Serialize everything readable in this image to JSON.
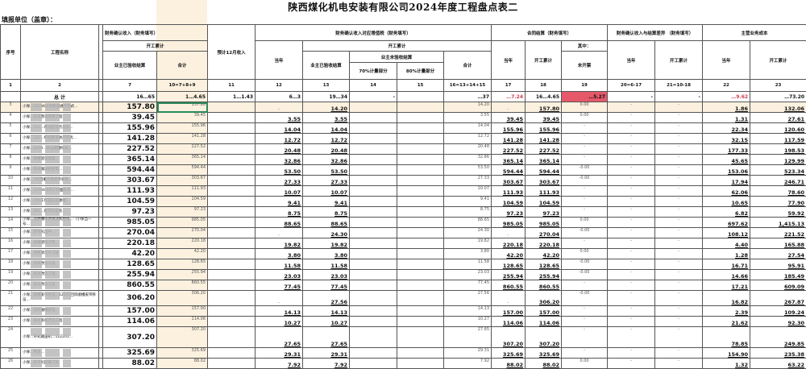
{
  "title": "陕西煤化机电安装有限公司2024年度工程盘点表二",
  "unit_label": "填报单位（盖章）：",
  "headers": {
    "seq": "序号",
    "name": "工程名称",
    "fin_income": "财务确认收入（财务填写）",
    "cum": "开工累计",
    "owner_accepted": "业主已验收结算",
    "total": "合计",
    "est_dec": "预计12月收入",
    "vat": "财务确认收入对应增值税（财务填写）",
    "cur_year": "当年",
    "owner_unaccepted": "业主未验收结算",
    "p70": "70%计量部分",
    "p80": "80%计量部分",
    "contract": "合同结算（财务填写）",
    "of_which": "其中：",
    "uninvoiced": "未开票",
    "diff": "财务确认收入与结算差异 （财务填写）",
    "cost": "主营业务成本"
  },
  "index_row": [
    "1",
    "2",
    "7",
    "10=7+8+9",
    "11",
    "12",
    "13",
    "14",
    "15",
    "16=13+14+15",
    "17",
    "18",
    "19",
    "20=6-17",
    "21=10-18",
    "22",
    "23"
  ],
  "total_row": {
    "label": "总  计",
    "values": [
      "16…65",
      "1…4.65",
      "1…1.43",
      "6…3",
      "19…34",
      "-",
      "",
      "…37",
      "…7.24",
      "16…4.65",
      "…5.27",
      "-",
      "-",
      "…9.62",
      "…73.20"
    ]
  },
  "colors": {
    "cream": "#fcf1df",
    "alert_red": "#e5596a",
    "selection": "#2b8a5a"
  },
  "rows": [
    {
      "seq": "3",
      "name": "小保…32204综掘巷道进尺带式…",
      "v": [
        "157.80",
        "157.80",
        "",
        "-",
        "14.20",
        "",
        "",
        "14.20",
        "-",
        "157.80",
        "0.00",
        "-",
        "-",
        "1.86",
        "132.06"
      ]
    },
    {
      "seq": "4",
      "name": "小保…综采巷道更换工程",
      "v": [
        "39.45",
        "39.45",
        "",
        "3.55",
        "3.55",
        "",
        "",
        "3.55",
        "39.45",
        "39.45",
        "0.00",
        "-",
        "-",
        "1.31",
        "27.61"
      ]
    },
    {
      "seq": "5",
      "name": "小保…122…巷道配电点及照…",
      "v": [
        "155.96",
        "155.96",
        "",
        "14.04",
        "14.04",
        "",
        "",
        "14.04",
        "155.96",
        "155.96",
        "-",
        "-",
        "-",
        "22.34",
        "120.60"
      ]
    },
    {
      "seq": "6",
      "name": "小保…122…综掘巷道进尺带式…",
      "v": [
        "141.28",
        "141.28",
        "",
        "12.72",
        "12.72",
        "",
        "",
        "12.72",
        "141.28",
        "141.28",
        "-",
        "-",
        "-",
        "32.15",
        "117.59"
      ]
    },
    {
      "seq": "7",
      "name": "小保…2200…采运顺槽综采…",
      "v": [
        "227.52",
        "227.52",
        "",
        "20.48",
        "20.48",
        "",
        "",
        "20.48",
        "227.52",
        "227.52",
        "-",
        "-",
        "-",
        "177.33",
        "198.53"
      ]
    },
    {
      "seq": "8",
      "name": "小保…顺槽配采电缆…",
      "v": [
        "365.14",
        "365.14",
        "",
        "32.86",
        "32.86",
        "",
        "",
        "32.86",
        "365.14",
        "365.14",
        "-",
        "-",
        "-",
        "45.65",
        "129.99"
      ]
    },
    {
      "seq": "9",
      "name": "小保…带式输送机配电…",
      "v": [
        "594.44",
        "594.44",
        "",
        "53.50",
        "53.50",
        "",
        "",
        "53.50",
        "594.44",
        "594.44",
        "-0.00",
        "-",
        "-",
        "153.06",
        "523.34"
      ]
    },
    {
      "seq": "10",
      "name": "小保…2综回撤大巷皮带更换…",
      "v": [
        "303.67",
        "303.67",
        "",
        "27.33",
        "27.33",
        "",
        "",
        "27.33",
        "303.67",
        "303.67",
        "-0.00",
        "-",
        "-",
        "17.94",
        "246.71"
      ]
    },
    {
      "seq": "11",
      "name": "小保…22204进风工作面胶带…",
      "v": [
        "111.93",
        "111.93",
        "",
        "10.07",
        "10.07",
        "",
        "",
        "10.07",
        "111.93",
        "111.93",
        "-",
        "-",
        "-",
        "62.06",
        "78.60"
      ]
    },
    {
      "seq": "12",
      "name": "小保…204工作面胶运顺槽…",
      "v": [
        "104.59",
        "104.59",
        "",
        "9.41",
        "9.41",
        "",
        "",
        "9.41",
        "104.59",
        "104.59",
        "-",
        "-",
        "-",
        "10.65",
        "77.90"
      ]
    },
    {
      "seq": "13",
      "name": "小保…201…胶带机安装…",
      "v": [
        "97.23",
        "97.23",
        "",
        "8.75",
        "8.75",
        "",
        "",
        "8.75",
        "97.23",
        "97.23",
        "-",
        "-",
        "-",
        "6.82",
        "59.92"
      ]
    },
    {
      "seq": "14",
      "name": "小保…运顺槽带式输送机配电…（小保当一号…",
      "v": [
        "985.05",
        "985.05",
        "",
        "88.65",
        "88.65",
        "",
        "",
        "88.65",
        "985.05",
        "985.05",
        "0.00",
        "-",
        "-",
        "697.62",
        "1,415.13"
      ]
    },
    {
      "seq": "15",
      "name": "小保…胶带机运中…",
      "v": [
        "270.04",
        "270.04",
        "",
        "-",
        "24.30",
        "",
        "",
        "24.30",
        "-",
        "270.04",
        "-0.00",
        "-",
        "-",
        "108.12",
        "221.52"
      ]
    },
    {
      "seq": "16",
      "name": "小保…顺槽配电点及…",
      "v": [
        "220.18",
        "220.18",
        "",
        "19.82",
        "19.82",
        "",
        "",
        "19.82",
        "220.18",
        "220.18",
        "-",
        "-",
        "-",
        "4.40",
        "165.88"
      ]
    },
    {
      "seq": "17",
      "name": "小保…更换消音片工程",
      "v": [
        "42.20",
        "42.20",
        "",
        "3.80",
        "3.80",
        "",
        "",
        "3.80",
        "42.20",
        "42.20",
        "0.00",
        "-",
        "-",
        "1.28",
        "27.54"
      ]
    },
    {
      "seq": "18",
      "name": "小保…系统改造工程",
      "v": [
        "128.65",
        "128.65",
        "",
        "11.58",
        "11.58",
        "",
        "",
        "11.58",
        "128.65",
        "128.65",
        "-0.00",
        "-",
        "-",
        "16.71",
        "95.91"
      ]
    },
    {
      "seq": "19",
      "name": "小保…排水改造工程",
      "v": [
        "255.94",
        "255.94",
        "",
        "23.03",
        "23.03",
        "",
        "",
        "23.03",
        "255.94",
        "255.94",
        "-0.00",
        "-",
        "-",
        "14.66",
        "185.49"
      ]
    },
    {
      "seq": "20",
      "name": "小保…排水改造工程",
      "v": [
        "860.55",
        "860.55",
        "",
        "77.45",
        "77.45",
        "",
        "",
        "77.45",
        "860.55",
        "860.55",
        "-",
        "-",
        "-",
        "17.21",
        "609.09"
      ]
    },
    {
      "seq": "21",
      "name": "小保…顺槽皮带移设…12201回风顺槽皮带移设…",
      "v": [
        "306.20",
        "306.20",
        "",
        "-",
        "27.56",
        "",
        "",
        "27.56",
        "-",
        "306.20",
        "-0.00",
        "-",
        "-",
        "16.82",
        "267.87"
      ]
    },
    {
      "seq": "22",
      "name": "小保…回风顺槽配电…",
      "v": [
        "157.00",
        "157.00",
        "",
        "14.13",
        "14.13",
        "",
        "",
        "14.13",
        "157.00",
        "157.00",
        "-",
        "-",
        "-",
        "2.39",
        "109.24"
      ]
    },
    {
      "seq": "23",
      "name": "小保…排水系统改造工程",
      "v": [
        "114.06",
        "114.06",
        "",
        "10.27",
        "10.27",
        "",
        "",
        "10.27",
        "114.06",
        "114.06",
        "-",
        "-",
        "-",
        "21.62",
        "92.30"
      ]
    },
    {
      "seq": "24",
      "name": "小保…带式输送机…122201…",
      "v": [
        "307.20",
        "307.20",
        "",
        "27.65",
        "27.65",
        "",
        "",
        "27.65",
        "307.20",
        "307.20",
        "-",
        "-",
        "-",
        "78.85",
        "249.85"
      ]
    },
    {
      "seq": "25",
      "name": "小保…巷道…",
      "v": [
        "325.69",
        "325.69",
        "",
        "29.31",
        "29.31",
        "",
        "",
        "29.31",
        "325.69",
        "325.69",
        "-",
        "-",
        "-",
        "154.90",
        "235.38"
      ]
    },
    {
      "seq": "26",
      "name": "小保…胶带机回撤工程",
      "v": [
        "88.02",
        "88.02",
        "",
        "7.92",
        "7.92",
        "",
        "",
        "7.92",
        "88.02",
        "88.02",
        "0.00",
        "-",
        "-",
        "1.32",
        "63.22"
      ]
    }
  ]
}
